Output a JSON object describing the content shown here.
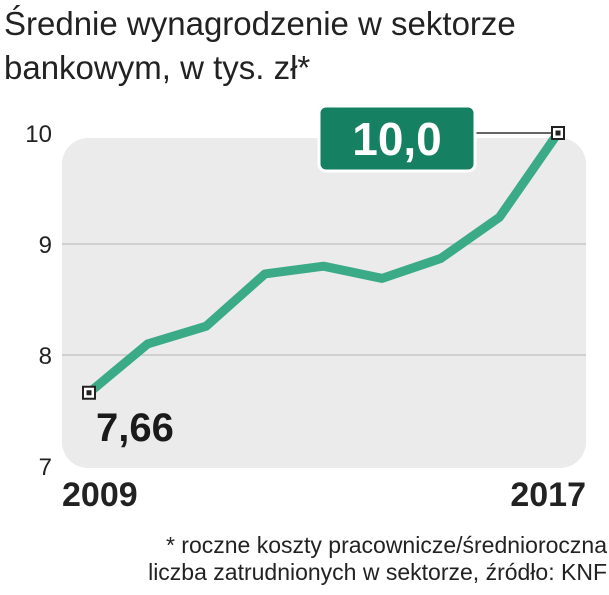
{
  "title_lines": [
    "Średnie wynagrodzenie w sektorze",
    "bankowym, w tys. zł*"
  ],
  "footnote_lines": [
    "* roczne koszty pracownicze/średnioroczna",
    "liczba zatrudnionych w sektorze, źródło: KNF"
  ],
  "colors": {
    "line": "#3aaa87",
    "callout": "#168062",
    "panel": "#ebebeb",
    "grid": "#c8c8c8"
  },
  "chart_data": {
    "type": "line",
    "title": "Średnie wynagrodzenie w sektorze bankowym, w tys. zł*",
    "xlabel": "",
    "ylabel": "",
    "ylim": [
      7,
      10
    ],
    "yticks": [
      "7",
      "8",
      "9",
      "10"
    ],
    "x_tick_labels": [
      "2009",
      "2017"
    ],
    "x": [
      2009,
      2010,
      2011,
      2012,
      2013,
      2014,
      2015,
      2016,
      2017
    ],
    "values": [
      7.66,
      8.1,
      8.26,
      8.73,
      8.8,
      8.69,
      8.87,
      9.24,
      10.0
    ],
    "start_label": "7,66",
    "end_label": "10,0",
    "grid": true
  }
}
